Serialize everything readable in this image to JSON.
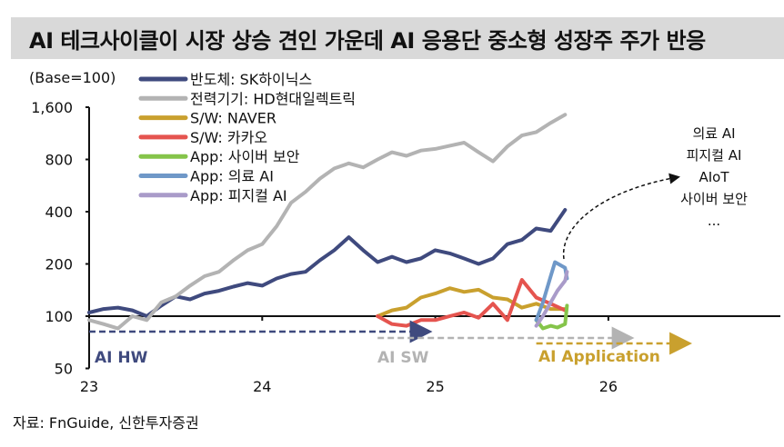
{
  "title": "AI 테크사이클이 시장 상승 견인 가운데 AI 응용단 중소형 성장주 주가 반응",
  "source": "자료: FnGuide, 신한투자증권",
  "chart_data": {
    "type": "line",
    "ylabel": "(Base=100)",
    "yscale": "log",
    "ylim": [
      50,
      1600
    ],
    "yticks": [
      50,
      100,
      200,
      400,
      800,
      1600
    ],
    "ytick_labels": [
      "50",
      "100",
      "200",
      "400",
      "800",
      "1,600"
    ],
    "xlim": [
      2023,
      2026.5
    ],
    "xticks": [
      2023,
      2024,
      2025,
      2026
    ],
    "xtick_labels": [
      "23",
      "24",
      "25",
      "26"
    ],
    "legend_position": "top-left",
    "grid": false,
    "series": [
      {
        "name": "반도체: SK하이닉스",
        "color": "#3f4a7e",
        "points": [
          [
            "2023-01-01",
            105
          ],
          [
            "2023-02-01",
            110
          ],
          [
            "2023-03-01",
            112
          ],
          [
            "2023-04-01",
            108
          ],
          [
            "2023-05-01",
            100
          ],
          [
            "2023-06-01",
            115
          ],
          [
            "2023-07-01",
            130
          ],
          [
            "2023-08-01",
            125
          ],
          [
            "2023-09-01",
            135
          ],
          [
            "2023-10-01",
            140
          ],
          [
            "2023-11-01",
            148
          ],
          [
            "2023-12-01",
            155
          ],
          [
            "2024-01-01",
            150
          ],
          [
            "2024-02-01",
            165
          ],
          [
            "2024-03-01",
            175
          ],
          [
            "2024-04-01",
            180
          ],
          [
            "2024-05-01",
            210
          ],
          [
            "2024-06-01",
            240
          ],
          [
            "2024-07-01",
            285
          ],
          [
            "2024-08-01",
            240
          ],
          [
            "2024-09-01",
            205
          ],
          [
            "2024-10-01",
            220
          ],
          [
            "2024-11-01",
            205
          ],
          [
            "2024-12-01",
            215
          ],
          [
            "2025-01-01",
            240
          ],
          [
            "2025-02-01",
            230
          ],
          [
            "2025-03-01",
            215
          ],
          [
            "2025-04-01",
            200
          ],
          [
            "2025-05-01",
            215
          ],
          [
            "2025-06-01",
            260
          ],
          [
            "2025-07-01",
            275
          ],
          [
            "2025-08-01",
            320
          ],
          [
            "2025-09-01",
            310
          ],
          [
            "2025-10-01",
            410
          ]
        ]
      },
      {
        "name": "전력기기: HD현대일렉트릭",
        "color": "#b3b3b3",
        "points": [
          [
            "2023-01-01",
            95
          ],
          [
            "2023-02-01",
            90
          ],
          [
            "2023-03-01",
            85
          ],
          [
            "2023-04-01",
            100
          ],
          [
            "2023-05-01",
            95
          ],
          [
            "2023-06-01",
            120
          ],
          [
            "2023-07-01",
            130
          ],
          [
            "2023-08-01",
            150
          ],
          [
            "2023-09-01",
            170
          ],
          [
            "2023-10-01",
            180
          ],
          [
            "2023-11-01",
            210
          ],
          [
            "2023-12-01",
            240
          ],
          [
            "2024-01-01",
            260
          ],
          [
            "2024-02-01",
            330
          ],
          [
            "2024-03-01",
            450
          ],
          [
            "2024-04-01",
            520
          ],
          [
            "2024-05-01",
            620
          ],
          [
            "2024-06-01",
            710
          ],
          [
            "2024-07-01",
            760
          ],
          [
            "2024-08-01",
            720
          ],
          [
            "2024-09-01",
            800
          ],
          [
            "2024-10-01",
            880
          ],
          [
            "2024-11-01",
            840
          ],
          [
            "2024-12-01",
            900
          ],
          [
            "2025-01-01",
            920
          ],
          [
            "2025-02-01",
            960
          ],
          [
            "2025-03-01",
            1000
          ],
          [
            "2025-04-01",
            880
          ],
          [
            "2025-05-01",
            780
          ],
          [
            "2025-06-01",
            950
          ],
          [
            "2025-07-01",
            1100
          ],
          [
            "2025-08-01",
            1150
          ],
          [
            "2025-09-01",
            1300
          ],
          [
            "2025-10-01",
            1450
          ]
        ]
      },
      {
        "name": "S/W: NAVER",
        "color": "#c9a02e",
        "points": [
          [
            "2024-09-01",
            100
          ],
          [
            "2024-10-01",
            108
          ],
          [
            "2024-11-01",
            112
          ],
          [
            "2024-12-01",
            128
          ],
          [
            "2025-01-01",
            135
          ],
          [
            "2025-02-01",
            145
          ],
          [
            "2025-03-01",
            138
          ],
          [
            "2025-04-01",
            142
          ],
          [
            "2025-05-01",
            128
          ],
          [
            "2025-06-01",
            125
          ],
          [
            "2025-07-01",
            112
          ],
          [
            "2025-08-01",
            118
          ],
          [
            "2025-09-01",
            110
          ],
          [
            "2025-10-01",
            110
          ]
        ]
      },
      {
        "name": "S/W: 카카오",
        "color": "#e5544f",
        "points": [
          [
            "2024-09-01",
            100
          ],
          [
            "2024-10-01",
            90
          ],
          [
            "2024-11-01",
            88
          ],
          [
            "2024-12-01",
            95
          ],
          [
            "2025-01-01",
            95
          ],
          [
            "2025-02-01",
            100
          ],
          [
            "2025-03-01",
            105
          ],
          [
            "2025-04-01",
            98
          ],
          [
            "2025-05-01",
            118
          ],
          [
            "2025-06-01",
            95
          ],
          [
            "2025-07-01",
            162
          ],
          [
            "2025-08-01",
            128
          ],
          [
            "2025-09-01",
            118
          ],
          [
            "2025-10-01",
            108
          ]
        ]
      },
      {
        "name": "App: 사이버 보안",
        "color": "#85c44a",
        "points": [
          [
            "2025-08-01",
            95
          ],
          [
            "2025-08-15",
            85
          ],
          [
            "2025-09-01",
            88
          ],
          [
            "2025-09-15",
            86
          ],
          [
            "2025-10-01",
            90
          ],
          [
            "2025-10-05",
            115
          ]
        ]
      },
      {
        "name": "App: 의료 AI",
        "color": "#6f98c8",
        "points": [
          [
            "2025-08-01",
            95
          ],
          [
            "2025-08-15",
            120
          ],
          [
            "2025-09-01",
            170
          ],
          [
            "2025-09-10",
            205
          ],
          [
            "2025-10-01",
            190
          ],
          [
            "2025-10-05",
            165
          ]
        ]
      },
      {
        "name": "App: 피지컬 AI",
        "color": "#a99bc9",
        "points": [
          [
            "2025-08-01",
            88
          ],
          [
            "2025-08-15",
            100
          ],
          [
            "2025-09-01",
            120
          ],
          [
            "2025-09-15",
            140
          ],
          [
            "2025-10-01",
            160
          ],
          [
            "2025-10-05",
            180
          ]
        ]
      }
    ],
    "annotations": {
      "phases": [
        {
          "label": "AI HW",
          "color": "#3f4a7e",
          "from": "2023-01-01",
          "to": "2025-01-01"
        },
        {
          "label": "AI SW",
          "color": "#b3b3b3",
          "from": "2024-09-01",
          "to": "2026-03-01"
        },
        {
          "label": "AI Application",
          "color": "#c9a02e",
          "from": "2025-08-01",
          "to": "2026-07-01"
        }
      ],
      "outlook_list": [
        "의료 AI",
        "피지컬 AI",
        "AIoT",
        "사이버 보안",
        "..."
      ]
    }
  }
}
